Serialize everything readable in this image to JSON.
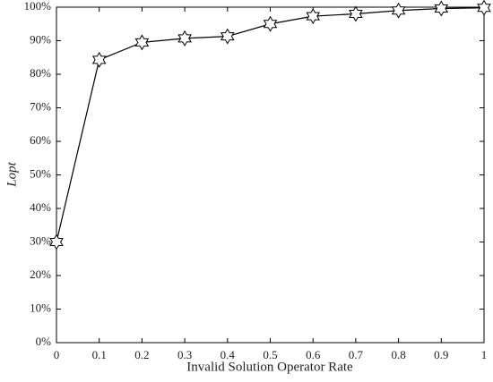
{
  "chart_data": {
    "type": "line",
    "xlabel": "Invalid Solution Operator Rate",
    "ylabel": "Lopt",
    "x": [
      0,
      0.1,
      0.2,
      0.3,
      0.4,
      0.5,
      0.6,
      0.7,
      0.8,
      0.9,
      1
    ],
    "series": [
      {
        "color": "#000000",
        "values": [
          30,
          84.3,
          89.5,
          90.7,
          91.3,
          95,
          97.3,
          98,
          99,
          99.6,
          99.8
        ]
      }
    ],
    "xlim": [
      0,
      1
    ],
    "xticks": [
      0,
      0.1,
      0.2,
      0.3,
      0.4,
      0.5,
      0.6,
      0.7,
      0.8,
      0.9,
      1
    ],
    "ylim": [
      0,
      100
    ],
    "yticks": [
      {
        "value": 0,
        "label": "0%"
      },
      {
        "value": 10,
        "label": "10%"
      },
      {
        "value": 20,
        "label": "20%"
      },
      {
        "value": 30,
        "label": "30%"
      },
      {
        "value": 40,
        "label": "40%"
      },
      {
        "value": 50,
        "label": "50%"
      },
      {
        "value": 60,
        "label": "60%"
      },
      {
        "value": 70,
        "label": "70%"
      },
      {
        "value": 80,
        "label": "80%"
      },
      {
        "value": 90,
        "label": "90%"
      },
      {
        "value": 100,
        "label": "100%"
      }
    ],
    "grid": false
  }
}
